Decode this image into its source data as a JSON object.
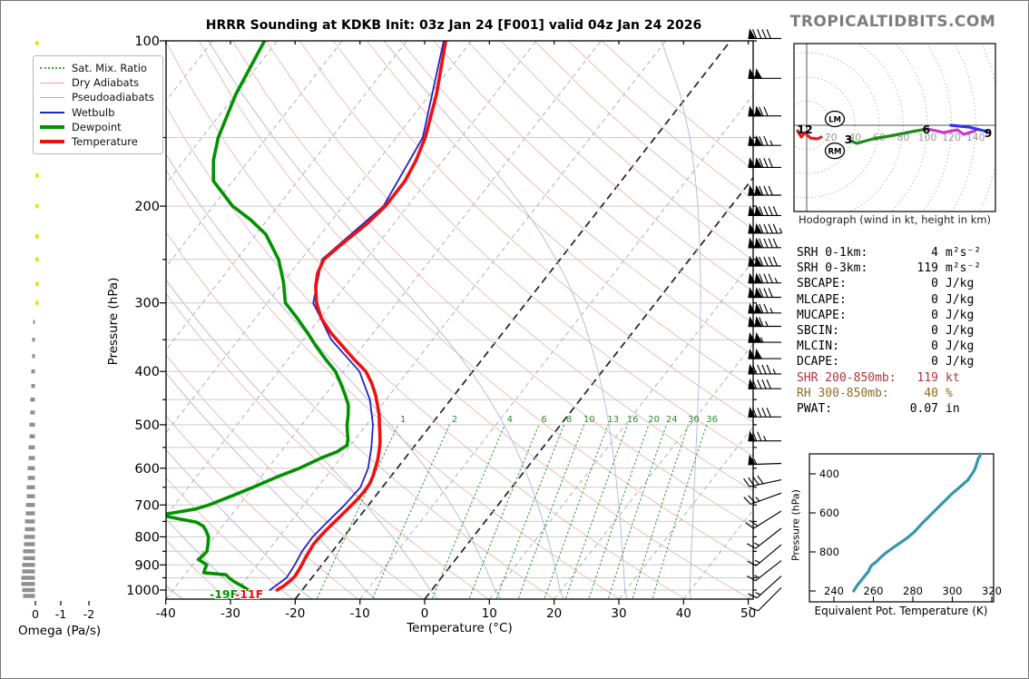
{
  "header": {
    "title": "HRRR Sounding at KDKB Init: 03z Jan 24 [F001] valid 04z Jan 24 2026",
    "watermark": "TROPICALTIDBITS.COM"
  },
  "legend": {
    "items": [
      {
        "label": "Sat. Mix. Ratio",
        "color": "#3aa03a",
        "style": "dotted",
        "weight": 2
      },
      {
        "label": "Dry Adiabats",
        "color": "#e8a8a8",
        "style": "solid",
        "weight": 1.5
      },
      {
        "label": "Pseudoadiabats",
        "color": "#a8a8d8",
        "style": "solid",
        "weight": 1.5
      },
      {
        "label": "Wetbulb",
        "color": "#2222cc",
        "style": "solid",
        "weight": 2
      },
      {
        "label": "Dewpoint",
        "color": "#009200",
        "style": "solid",
        "weight": 4
      },
      {
        "label": "Temperature",
        "color": "#ee1111",
        "style": "solid",
        "weight": 4
      }
    ]
  },
  "chart_data": {
    "skewt": {
      "type": "line",
      "x_axis_title": "Temperature (°C)",
      "y_axis_title": "Pressure (hPa)",
      "x_ticks": [
        -40,
        -30,
        -20,
        -10,
        0,
        10,
        20,
        30,
        40,
        50
      ],
      "y_ticks": [
        100,
        200,
        300,
        400,
        500,
        600,
        700,
        800,
        900,
        1000
      ],
      "xlim": [
        -40,
        50
      ],
      "plim": [
        100,
        1050
      ],
      "mixing_ratio_labels": [
        1,
        2,
        4,
        6,
        8,
        10,
        13,
        16,
        20,
        24,
        30,
        36
      ],
      "highlight_isotherms": [
        -20,
        0
      ],
      "surface_temp_label": "-11F",
      "surface_dewp_label": "-19F",
      "temperature_profile": [
        [
          100,
          -64
        ],
        [
          125,
          -59
        ],
        [
          150,
          -55.5
        ],
        [
          165,
          -54.2
        ],
        [
          180,
          -53.4
        ],
        [
          200,
          -53.4
        ],
        [
          215,
          -54.1
        ],
        [
          235,
          -55.6
        ],
        [
          250,
          -56.5
        ],
        [
          265,
          -55.8
        ],
        [
          280,
          -54.5
        ],
        [
          300,
          -52.4
        ],
        [
          320,
          -49.8
        ],
        [
          340,
          -46.6
        ],
        [
          360,
          -43.1
        ],
        [
          380,
          -39.8
        ],
        [
          400,
          -36.5
        ],
        [
          420,
          -34.2
        ],
        [
          440,
          -32.3
        ],
        [
          460,
          -30.7
        ],
        [
          480,
          -29.2
        ],
        [
          500,
          -28.0
        ],
        [
          520,
          -26.8
        ],
        [
          540,
          -25.7
        ],
        [
          560,
          -24.8
        ],
        [
          580,
          -24.0
        ],
        [
          600,
          -23.4
        ],
        [
          620,
          -22.8
        ],
        [
          640,
          -22.4
        ],
        [
          660,
          -22.3
        ],
        [
          680,
          -22.4
        ],
        [
          700,
          -22.6
        ],
        [
          725,
          -22.9
        ],
        [
          750,
          -23.2
        ],
        [
          775,
          -23.5
        ],
        [
          800,
          -23.7
        ],
        [
          825,
          -23.8
        ],
        [
          850,
          -23.6
        ],
        [
          875,
          -23.4
        ],
        [
          900,
          -23.1
        ],
        [
          925,
          -22.9
        ],
        [
          945,
          -22.8
        ],
        [
          965,
          -23.0
        ],
        [
          985,
          -23.4
        ],
        [
          1000,
          -23.9
        ]
      ],
      "dewpoint_profile": [
        [
          100,
          -92
        ],
        [
          125,
          -90
        ],
        [
          150,
          -87.5
        ],
        [
          165,
          -85.5
        ],
        [
          180,
          -83
        ],
        [
          200,
          -77
        ],
        [
          212,
          -72.5
        ],
        [
          225,
          -68.5
        ],
        [
          250,
          -63.5
        ],
        [
          275,
          -60
        ],
        [
          300,
          -57.2
        ],
        [
          320,
          -53.5
        ],
        [
          340,
          -50.2
        ],
        [
          360,
          -47.2
        ],
        [
          380,
          -44.2
        ],
        [
          400,
          -41.2
        ],
        [
          420,
          -39
        ],
        [
          440,
          -37
        ],
        [
          460,
          -35.2
        ],
        [
          480,
          -34
        ],
        [
          500,
          -33
        ],
        [
          515,
          -32.1
        ],
        [
          530,
          -31.2
        ],
        [
          545,
          -30.5
        ],
        [
          560,
          -31.3
        ],
        [
          575,
          -33
        ],
        [
          600,
          -35.1
        ],
        [
          620,
          -37.3
        ],
        [
          650,
          -40
        ],
        [
          675,
          -42.3
        ],
        [
          700,
          -44.7
        ],
        [
          712,
          -46.3
        ],
        [
          722,
          -48.8
        ],
        [
          728,
          -50.5
        ],
        [
          735,
          -49.6
        ],
        [
          742,
          -47.6
        ],
        [
          752,
          -44.6
        ],
        [
          765,
          -43
        ],
        [
          780,
          -42
        ],
        [
          800,
          -40.9
        ],
        [
          825,
          -40.1
        ],
        [
          850,
          -39.4
        ],
        [
          865,
          -39.5
        ],
        [
          880,
          -39.7
        ],
        [
          900,
          -37.8
        ],
        [
          915,
          -37.6
        ],
        [
          930,
          -37.3
        ],
        [
          938,
          -33.6
        ],
        [
          950,
          -32.8
        ],
        [
          965,
          -31.6
        ],
        [
          980,
          -30.1
        ],
        [
          1000,
          -28.3
        ]
      ],
      "wetbulb_profile": [
        [
          100,
          -64.3
        ],
        [
          150,
          -55.9
        ],
        [
          200,
          -53.7
        ],
        [
          250,
          -56.8
        ],
        [
          300,
          -52.9
        ],
        [
          350,
          -45.7
        ],
        [
          400,
          -37.5
        ],
        [
          450,
          -32.5
        ],
        [
          500,
          -29.0
        ],
        [
          550,
          -26.5
        ],
        [
          600,
          -24.5
        ],
        [
          650,
          -23.4
        ],
        [
          700,
          -23.7
        ],
        [
          750,
          -24.3
        ],
        [
          800,
          -24.8
        ],
        [
          850,
          -24.7
        ],
        [
          900,
          -24.2
        ],
        [
          950,
          -23.9
        ],
        [
          1000,
          -25.0
        ]
      ],
      "colors": {
        "temperature": "#ee1111",
        "dewpoint": "#009200",
        "wetbulb": "#2222cc",
        "dry_adiabat": "#eab6b6",
        "pseudoadiabat": "#b4b4de",
        "mixing_ratio": "#3aa03a",
        "isotherm": "#a8a8a8",
        "isotherm_highlight": "#222222",
        "grid": "#cccccc"
      }
    },
    "omega": {
      "title": "Omega (Pa/s)",
      "ticks": [
        0,
        -1,
        -2
      ],
      "ascent_levels_hpa": [
        101,
        151,
        176,
        200,
        227,
        250,
        277,
        300
      ],
      "ascent_color": "#f0e000",
      "descent_color": "#8f8f8f",
      "descent_bars": [
        [
          325,
          2
        ],
        [
          350,
          3
        ],
        [
          375,
          3
        ],
        [
          400,
          4
        ],
        [
          425,
          4
        ],
        [
          450,
          5
        ],
        [
          475,
          5
        ],
        [
          500,
          6
        ],
        [
          525,
          6
        ],
        [
          550,
          7
        ],
        [
          575,
          7
        ],
        [
          600,
          8
        ],
        [
          625,
          8
        ],
        [
          650,
          9
        ],
        [
          675,
          9
        ],
        [
          700,
          10
        ],
        [
          725,
          10
        ],
        [
          750,
          11
        ],
        [
          775,
          11
        ],
        [
          800,
          12
        ],
        [
          825,
          12
        ],
        [
          850,
          13
        ],
        [
          875,
          13
        ],
        [
          900,
          14
        ],
        [
          925,
          14
        ],
        [
          950,
          15
        ],
        [
          975,
          15
        ],
        [
          1000,
          14
        ],
        [
          1025,
          13
        ]
      ]
    },
    "wind_barbs": {
      "units": "kt",
      "levels": [
        [
          99,
          90,
          270
        ],
        [
          117,
          100,
          270
        ],
        [
          137,
          120,
          270
        ],
        [
          155,
          125,
          270
        ],
        [
          170,
          130,
          270
        ],
        [
          191,
          130,
          270
        ],
        [
          208,
          140,
          270
        ],
        [
          224,
          145,
          270
        ],
        [
          238,
          140,
          270
        ],
        [
          257,
          140,
          270
        ],
        [
          276,
          135,
          270
        ],
        [
          293,
          130,
          270
        ],
        [
          313,
          125,
          270
        ],
        [
          331,
          115,
          270
        ],
        [
          354,
          105,
          270
        ],
        [
          379,
          100,
          270
        ],
        [
          404,
          95,
          270
        ],
        [
          430,
          90,
          270
        ],
        [
          484,
          90,
          270
        ],
        [
          535,
          75,
          270
        ],
        [
          588,
          55,
          268
        ],
        [
          630,
          40,
          258
        ],
        [
          666,
          25,
          250
        ],
        [
          718,
          20,
          238
        ],
        [
          772,
          15,
          232
        ],
        [
          827,
          15,
          230
        ],
        [
          884,
          15,
          232
        ],
        [
          943,
          15,
          228
        ],
        [
          990,
          10,
          225
        ]
      ]
    },
    "hodograph": {
      "caption": "Hodograph (wind in kt, height in km)",
      "ring_interval_kt": 20,
      "ring_labels": [
        20,
        40,
        60,
        80,
        100,
        120,
        140
      ],
      "segments": [
        {
          "name": "9-12km",
          "color": "#dd2222",
          "pts": [
            [
              -7.5,
              4.5
            ],
            [
              -4.5,
              9.8
            ],
            [
              -1.5,
              6.0
            ],
            [
              3.0,
              10.5
            ],
            [
              9.0,
              11.3
            ],
            [
              12.0,
              9.8
            ]
          ]
        },
        {
          "name": "0-3km",
          "color": "#1a8c1a",
          "pts": [
            [
              36.1,
              12.8
            ],
            [
              41.4,
              15.0
            ],
            [
              54.9,
              11.3
            ],
            [
              72.2,
              8.3
            ],
            [
              87.2,
              5.3
            ],
            [
              100.0,
              3.0
            ]
          ]
        },
        {
          "name": "3-6km",
          "color": "#cc33cc",
          "pts": [
            [
              100.0,
              3.0
            ],
            [
              113.5,
              6.0
            ],
            [
              124.8,
              3.8
            ],
            [
              130.1,
              7.5
            ],
            [
              139.8,
              4.5
            ]
          ]
        },
        {
          "name": "6-9km",
          "color": "#3333ee",
          "pts": [
            [
              119.5,
              0.0
            ],
            [
              134.6,
              1.5
            ],
            [
              149.6,
              5.3
            ]
          ]
        }
      ],
      "height_labels": [
        {
          "text": "12",
          "u": -1.5,
          "v": 3.8
        },
        {
          "text": "3",
          "u": 34.6,
          "v": 12.0
        },
        {
          "text": "6",
          "u": 99.2,
          "v": 3.8
        },
        {
          "text": "9",
          "u": 150.4,
          "v": 6.8
        }
      ],
      "storm_motion_markers": [
        {
          "text": "LM",
          "u": 23.3,
          "v": -5.3
        },
        {
          "text": "RM",
          "u": 23.3,
          "v": 21.1
        }
      ]
    },
    "theta_e": {
      "type": "line",
      "x_title": "Equivalent Pot. Temperature (K)",
      "y_title": "Pressure (hPa)",
      "x_ticks": [
        240,
        260,
        280,
        300,
        320
      ],
      "y_ticks": [
        400,
        600,
        800
      ],
      "xlim": [
        228,
        321
      ],
      "plim": [
        298,
        1055
      ],
      "color": "#3596ad",
      "curve": [
        [
          298,
          314
        ],
        [
          310,
          314
        ],
        [
          320,
          313.2
        ],
        [
          340,
          312.6
        ],
        [
          360,
          312
        ],
        [
          380,
          311.2
        ],
        [
          400,
          310
        ],
        [
          420,
          308.6
        ],
        [
          430,
          308
        ],
        [
          450,
          305.8
        ],
        [
          475,
          303
        ],
        [
          500,
          300
        ],
        [
          525,
          297.5
        ],
        [
          550,
          295
        ],
        [
          575,
          292.5
        ],
        [
          600,
          290
        ],
        [
          625,
          287.6
        ],
        [
          650,
          285
        ],
        [
          675,
          282.8
        ],
        [
          700,
          280.5
        ],
        [
          725,
          277.5
        ],
        [
          750,
          274
        ],
        [
          775,
          270.5
        ],
        [
          800,
          267
        ],
        [
          825,
          264
        ],
        [
          850,
          261.5
        ],
        [
          870,
          259
        ],
        [
          890,
          257.9
        ],
        [
          900,
          257.5
        ],
        [
          925,
          255.5
        ],
        [
          950,
          253.5
        ],
        [
          975,
          251.6
        ],
        [
          1000,
          250
        ]
      ]
    }
  },
  "stats": {
    "rows": [
      {
        "label": "SRH 0-1km:",
        "value": "4",
        "unit": "m²s⁻²",
        "color": "#000000"
      },
      {
        "label": "SRH 0-3km:",
        "value": "119",
        "unit": "m²s⁻²",
        "color": "#000000"
      },
      {
        "label": "SBCAPE:",
        "value": "0",
        "unit": "J/kg",
        "color": "#000000"
      },
      {
        "label": "MLCAPE:",
        "value": "0",
        "unit": "J/kg",
        "color": "#000000"
      },
      {
        "label": "MUCAPE:",
        "value": "0",
        "unit": "J/kg",
        "color": "#000000"
      },
      {
        "label": "SBCIN:",
        "value": "0",
        "unit": "J/kg",
        "color": "#000000"
      },
      {
        "label": "MLCIN:",
        "value": "0",
        "unit": "J/kg",
        "color": "#000000"
      },
      {
        "label": "DCAPE:",
        "value": "0",
        "unit": "J/kg",
        "color": "#000000"
      },
      {
        "label": "SHR 200-850mb:",
        "value": "119",
        "unit": "kt",
        "color": "#b03336"
      },
      {
        "label": "RH 300-850mb:",
        "value": "40",
        "unit": "%",
        "color": "#8f6b20"
      },
      {
        "label": "PWAT:",
        "value": "0.07",
        "unit": "in",
        "color": "#000000"
      }
    ]
  }
}
